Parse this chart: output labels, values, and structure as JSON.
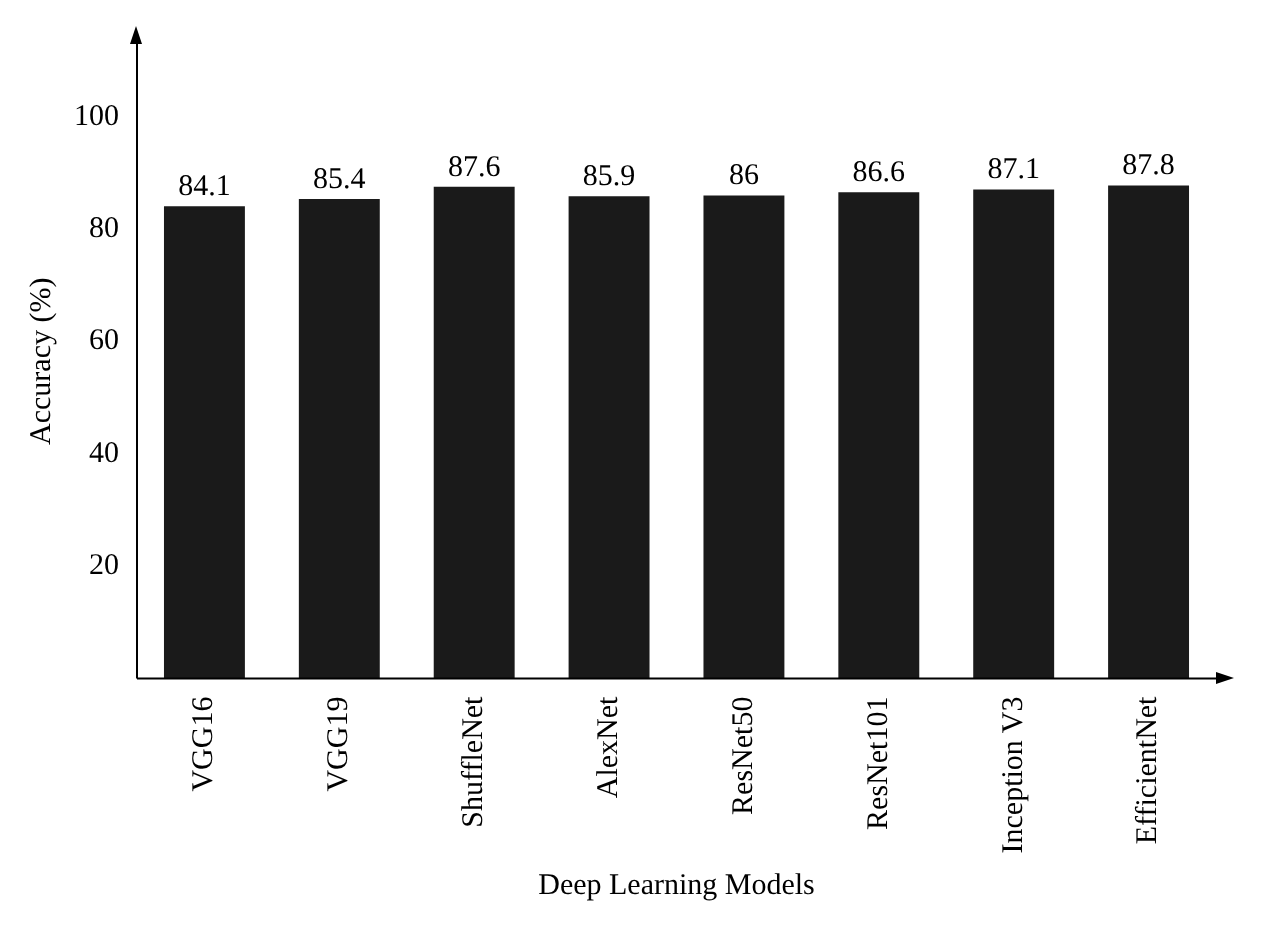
{
  "chart_data": {
    "type": "bar",
    "xlabel": "Deep Learning Models",
    "ylabel": "Accuracy (%)",
    "categories": [
      "VGG16",
      "VGG19",
      "ShuffleNet",
      "AlexNet",
      "ResNet50",
      "ResNet101",
      "Inception V3",
      "EfficientNet"
    ],
    "values": [
      84.1,
      85.4,
      87.6,
      85.9,
      86,
      86.6,
      87.1,
      87.8
    ],
    "color": "#1a1a1a",
    "ylim": [
      0,
      113
    ],
    "yticks": [
      20,
      40,
      60,
      80,
      100
    ],
    "grid": false,
    "legend": false,
    "data_labels": true
  }
}
